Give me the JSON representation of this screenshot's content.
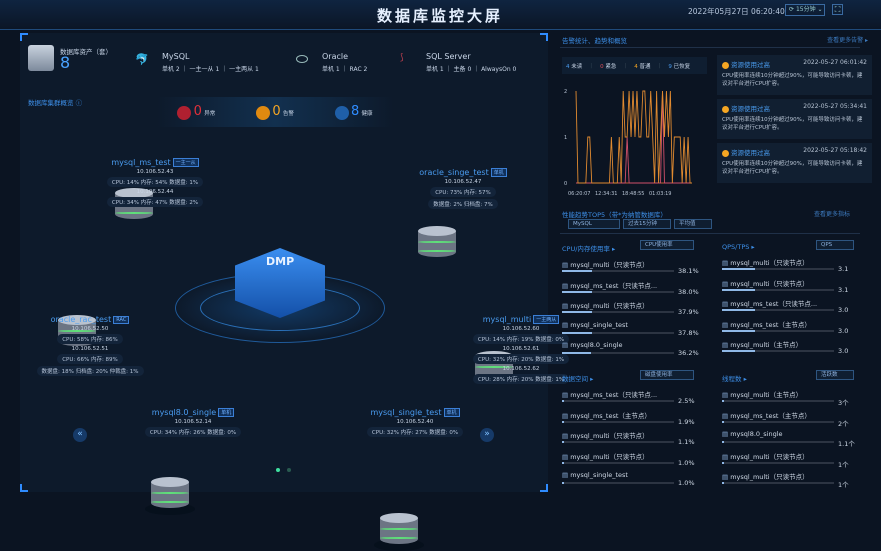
{
  "header": {
    "title": "数据库监控大屏",
    "datetime": "2022年05月27日 06:20:40",
    "refresh": "15分钟"
  },
  "assets": {
    "label": "数据库资产（套）",
    "count": "8",
    "types": [
      {
        "name": "MySQL",
        "detail": "单机 2 ｜ 一主一从 1 ｜ 一主两从 1",
        "icon": "dolphin-icon"
      },
      {
        "name": "Oracle",
        "detail": "单机 1 ｜ RAC 2",
        "icon": "oracle-icon"
      },
      {
        "name": "SQL Server",
        "detail": "单机 1 ｜ 主备 0 ｜ AlwaysOn 0",
        "icon": "sqlserver-icon"
      }
    ]
  },
  "cluster": {
    "label": "数据库集群概览 ⓘ",
    "abnormal": {
      "count": "0",
      "label": "异常",
      "color": "#e0303a"
    },
    "warning": {
      "count": "0",
      "label": "告警",
      "color": "#f5a623"
    },
    "healthy": {
      "count": "8",
      "label": "健康",
      "color": "#2f8cff"
    },
    "center": "DMP"
  },
  "nodes": [
    {
      "name": "mysql_ms_test",
      "tag": "一主一从",
      "lines": [
        "10.106.52.43",
        "CPU: 14% 内存: 54% 数据盘: 1%",
        "10.106.52.44",
        "CPU: 34% 内存: 47% 数据盘: 2%"
      ]
    },
    {
      "name": "oracle_singe_test",
      "tag": "单机",
      "lines": [
        "10.106.52.47",
        "CPU: 73% 内存: 57%",
        "数据盘: 2% 归档盘: 7%"
      ]
    },
    {
      "name": "oracle_rac_test",
      "tag": "RAC",
      "lines": [
        "10.106.52.50",
        "CPU: 58% 内存: 86%",
        "10.106.52.51",
        "CPU: 66% 内存: 89%",
        "数据盘: 18% 归档盘: 20% 仲裁盘: 1%"
      ]
    },
    {
      "name": "mysql_multi",
      "tag": "一主两从",
      "lines": [
        "10.106.52.60",
        "CPU: 14% 内存: 19% 数据盘: 0%",
        "10.106.52.61",
        "CPU: 32% 内存: 20% 数据盘: 1%",
        "10.106.52.62",
        "CPU: 28% 内存: 20% 数据盘: 1%"
      ]
    },
    {
      "name": "mysql8.0_single",
      "tag": "单机",
      "lines": [
        "10.106.52.14",
        "CPU: 34% 内存: 26% 数据盘: 0%"
      ]
    },
    {
      "name": "mysql_single_test",
      "tag": "单机",
      "lines": [
        "10.106.52.40",
        "CPU: 32% 内存: 27% 数据盘: 0%"
      ]
    }
  ],
  "alerts": {
    "title": "告警统计、趋势和概览",
    "more": "查看更多告警 ▸",
    "counts": [
      {
        "n": "4",
        "label": "未读",
        "color": "#4a9cf0"
      },
      {
        "n": "0",
        "label": "紧急",
        "color": "#e0505a"
      },
      {
        "n": "4",
        "label": "普通",
        "color": "#f5a623"
      },
      {
        "n": "9",
        "label": "已恢复",
        "color": "#4a9cf0"
      }
    ],
    "trend": {
      "y_ticks": [
        "2",
        "1",
        "0"
      ],
      "x_ticks": [
        "06:20:07",
        "12:34:31",
        "18:48:55",
        "01:03:19"
      ],
      "normal": [
        2,
        0,
        0,
        0,
        0,
        0,
        1,
        1,
        0,
        0,
        0,
        0,
        0,
        0,
        0,
        0,
        0,
        0,
        1,
        0,
        0,
        0,
        1,
        0,
        2,
        1,
        1,
        2,
        1,
        2,
        1,
        2,
        1,
        1,
        2,
        2,
        1,
        1,
        2,
        1,
        0,
        2,
        0,
        1,
        2,
        1,
        2,
        1,
        2,
        0,
        1,
        1,
        1,
        1,
        0,
        1,
        0,
        1,
        0,
        0
      ],
      "urgent": [
        0,
        0,
        0,
        0,
        0,
        0,
        0,
        0,
        0,
        0,
        0,
        0,
        0,
        0,
        0,
        0,
        0,
        0,
        0,
        0,
        0,
        0,
        0,
        0,
        0,
        0,
        1,
        0,
        0,
        0,
        0,
        0,
        0,
        0,
        0,
        0,
        0,
        0,
        0,
        0,
        0,
        0,
        0,
        0,
        2,
        0,
        0,
        0,
        0,
        0,
        0,
        0,
        0,
        0,
        0,
        0,
        0,
        0,
        0,
        0
      ]
    },
    "items": [
      {
        "title": "资源使用过高",
        "time": "2022-05-27 06:01:42",
        "desc": "CPU使用率连续10分钟超过90%，可能导致访问卡顿，建议对平台进行CPU扩容。"
      },
      {
        "title": "资源使用过高",
        "time": "2022-05-27 05:34:41",
        "desc": "CPU使用率连续10分钟超过90%，可能导致访问卡顿，建议对平台进行CPU扩容。"
      },
      {
        "title": "资源使用过高",
        "time": "2022-05-27 05:18:42",
        "desc": "CPU使用率连续10分钟超过90%，可能导致访问卡顿，建议对平台进行CPU扩容。"
      }
    ]
  },
  "perf": {
    "title": "性能趋势TOP5（带*为纳管数据库）",
    "more": "查看更多指标",
    "filters": [
      "MySQL",
      "过去15分钟",
      "平均值"
    ],
    "panels": [
      {
        "title": "CPU/内存使用率 ▸",
        "select": "CPU使用率",
        "rows": [
          {
            "name": "mysql_multi（只读节点）",
            "value": "38.1%",
            "pct": 38.1
          },
          {
            "name": "mysql_ms_test（只读节点...",
            "value": "38.0%",
            "pct": 38.0
          },
          {
            "name": "mysql_multi（只读节点）",
            "value": "37.9%",
            "pct": 37.9
          },
          {
            "name": "mysql_single_test",
            "value": "37.8%",
            "pct": 37.8
          },
          {
            "name": "mysql8.0_single",
            "value": "36.2%",
            "pct": 36.2
          }
        ]
      },
      {
        "title": "QPS/TPS ▸",
        "select": "QPS",
        "rows": [
          {
            "name": "mysql_multi（只读节点）",
            "value": "3.1",
            "pct": 3
          },
          {
            "name": "mysql_multi（只读节点）",
            "value": "3.1",
            "pct": 3
          },
          {
            "name": "mysql_ms_test（只读节点...",
            "value": "3.0",
            "pct": 3
          },
          {
            "name": "mysql_ms_test（主节点）",
            "value": "3.0",
            "pct": 3
          },
          {
            "name": "mysql_multi（主节点）",
            "value": "3.0",
            "pct": 3
          }
        ]
      },
      {
        "title": "数据空间 ▸",
        "select": "磁盘使用率",
        "rows": [
          {
            "name": "mysql_ms_test（只读节点...",
            "value": "2.5%",
            "pct": 2.5
          },
          {
            "name": "mysql_ms_test（主节点）",
            "value": "1.9%",
            "pct": 1.9
          },
          {
            "name": "mysql_multi（只读节点）",
            "value": "1.1%",
            "pct": 1.1
          },
          {
            "name": "mysql_multi（只读节点）",
            "value": "1.0%",
            "pct": 1.0
          },
          {
            "name": "mysql_single_test",
            "value": "1.0%",
            "pct": 1.0
          }
        ]
      },
      {
        "title": "线程数 ▸",
        "select": "活跃数",
        "rows": [
          {
            "name": "mysql_multi（主节点）",
            "value": "3个",
            "pct": 3
          },
          {
            "name": "mysql_ms_test（主节点）",
            "value": "2个",
            "pct": 2
          },
          {
            "name": "mysql8.0_single",
            "value": "1.1个",
            "pct": 1.1
          },
          {
            "name": "mysql_multi（只读节点）",
            "value": "1个",
            "pct": 1
          },
          {
            "name": "mysql_multi（只读节点）",
            "value": "1个",
            "pct": 1
          }
        ]
      }
    ]
  }
}
